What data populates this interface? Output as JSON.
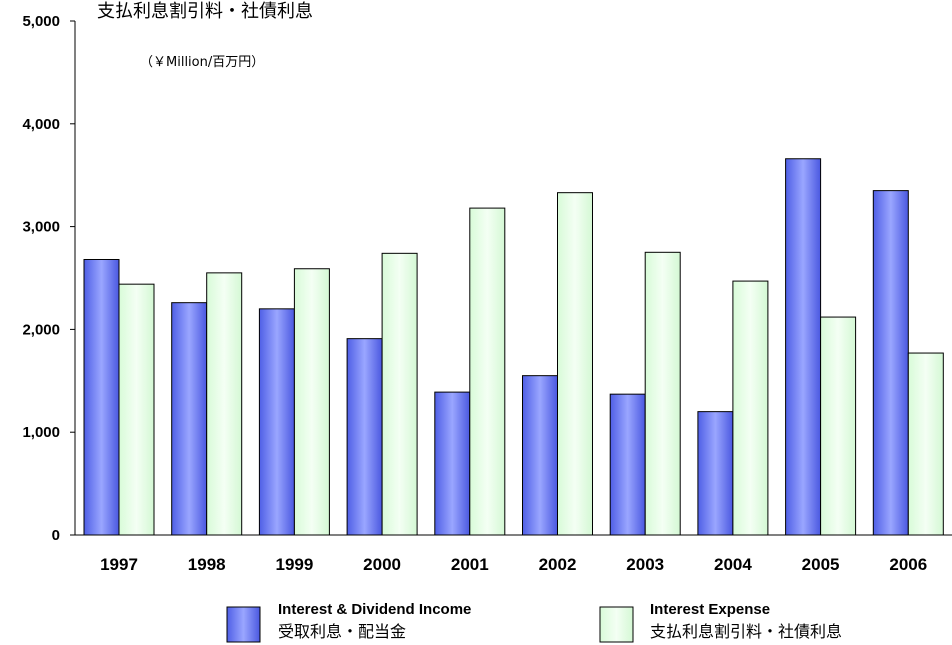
{
  "chart_data": {
    "type": "bar",
    "title": "支払利息割引料・社債利息",
    "unit_label": "（￥Million/百万円）",
    "categories": [
      "1997",
      "1998",
      "1999",
      "2000",
      "2001",
      "2002",
      "2003",
      "2004",
      "2005",
      "2006"
    ],
    "ylim": [
      0,
      5000
    ],
    "yticks": [
      "0",
      "1,000",
      "2,000",
      "3,000",
      "4,000",
      "5,000"
    ],
    "ytick_values": [
      0,
      1000,
      2000,
      3000,
      4000,
      5000
    ],
    "grid": false,
    "legend_position": "bottom",
    "series": [
      {
        "name": "Interest & Dividend Income",
        "name_jp": "受取利息・配当金",
        "color": "#6f7ff0",
        "values": [
          2680,
          2260,
          2200,
          1910,
          1390,
          1550,
          1370,
          1200,
          3660,
          3350
        ]
      },
      {
        "name": "Interest Expense",
        "name_jp": "支払利息割引料・社債利息",
        "color": "#e4ffe4",
        "values": [
          2440,
          2550,
          2590,
          2740,
          3180,
          3330,
          2750,
          2470,
          2120,
          1770
        ]
      }
    ]
  }
}
